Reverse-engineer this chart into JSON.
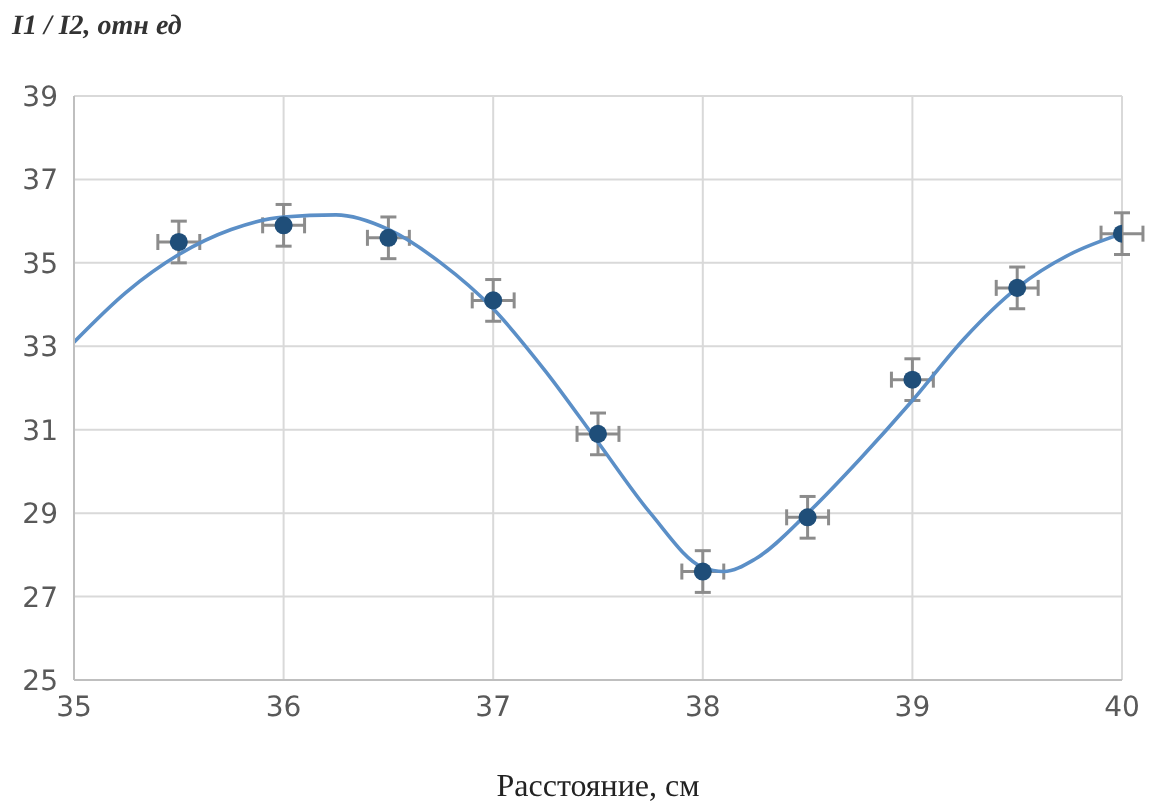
{
  "chart_data": {
    "type": "scatter",
    "ylabel": "I1 / I2, отн ед",
    "xlabel": "Расстояние, см",
    "xlim": [
      35,
      40
    ],
    "xticks": [
      35,
      36,
      37,
      38,
      39,
      40
    ],
    "ylim": [
      25,
      39
    ],
    "yticks": [
      25,
      27,
      29,
      31,
      33,
      35,
      37,
      39
    ],
    "grid": true,
    "legend": false,
    "series": [
      {
        "color": "#1f4e79",
        "marker": "circle",
        "x": [
          35.5,
          36,
          36.5,
          37,
          37.5,
          38,
          38.5,
          39,
          39.5,
          40
        ],
        "values": [
          35.5,
          35.9,
          35.6,
          34.1,
          30.9,
          27.6,
          28.9,
          32.2,
          34.4,
          35.7
        ],
        "errors": [
          0.5,
          0.5,
          0.5,
          0.5,
          0.5,
          0.5,
          0.5,
          0.5,
          0.5,
          0.5
        ],
        "xerrors": [
          0.1,
          0.1,
          0.1,
          0.1,
          0.1,
          0.1,
          0.1,
          0.1,
          0.1,
          0.1
        ]
      },
      {
        "type": "line",
        "color": "#5b8fc7",
        "marker": "none",
        "line_style": "solid",
        "x": [
          35,
          35.25,
          35.5,
          35.75,
          36,
          36.25,
          36.5,
          36.75,
          37,
          37.25,
          37.5,
          37.75,
          38,
          38.1,
          38.25,
          38.5,
          38.75,
          39,
          39.25,
          39.5,
          39.75,
          40
        ],
        "values": [
          33.1,
          34.3,
          35.2,
          35.8,
          36.1,
          36.15,
          35.8,
          35.0,
          33.9,
          32.4,
          30.7,
          29.0,
          27.7,
          27.6,
          27.9,
          29.0,
          30.3,
          31.7,
          33.2,
          34.4,
          35.2,
          35.7
        ]
      }
    ]
  }
}
